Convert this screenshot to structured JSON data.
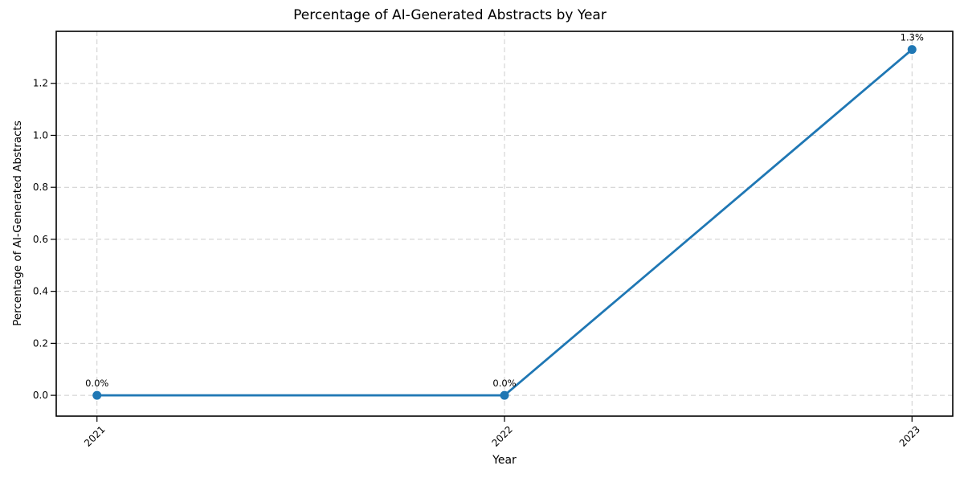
{
  "figure": {
    "background": "#ffffff"
  },
  "chart_data": {
    "type": "line",
    "title": "Percentage of AI-Generated Abstracts by Year",
    "xlabel": "Year",
    "ylabel": "Percentage of AI-Generated Abstracts",
    "categories": [
      "2021",
      "2022",
      "2023"
    ],
    "series": [
      {
        "name": "percent-ai-generated-abstracts",
        "values": [
          0.0,
          0.0,
          1.33
        ],
        "point_labels": [
          "0.0%",
          "0.0%",
          "1.3%"
        ],
        "color": "#1f77b4",
        "marker": "circle"
      }
    ],
    "ytick_labels": [
      "0.0",
      "0.2",
      "0.4",
      "0.6",
      "0.8",
      "1.0",
      "1.2"
    ],
    "ylim": [
      -0.08,
      1.4
    ],
    "x_margin_units": 0.1,
    "grid": true,
    "grid_style": "dashed",
    "grid_color": "#cccccc",
    "spine_color": "#000000",
    "tick_label_rotation_x": -45,
    "legend": "none"
  }
}
